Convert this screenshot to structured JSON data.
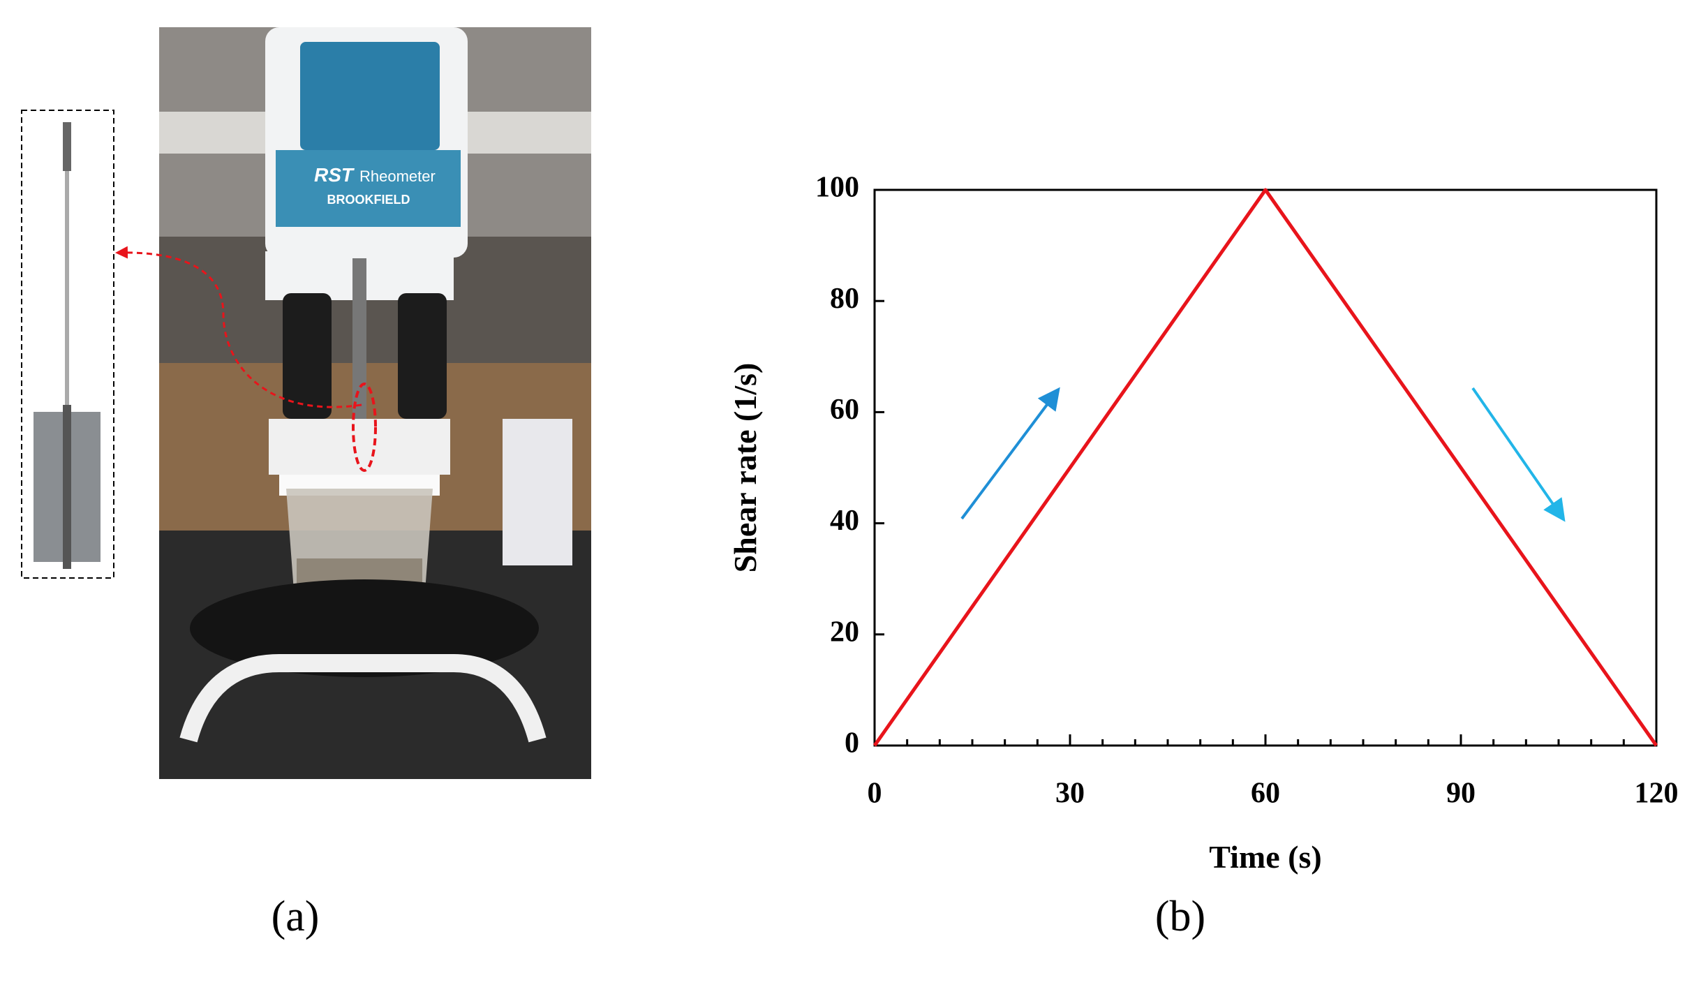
{
  "figure": {
    "panel_a_label": "(a)",
    "panel_b_label": "(b)",
    "photo": {
      "model": "RST",
      "name": "Rheometer",
      "brand": "BROOKFIELD"
    }
  },
  "chart_data": {
    "type": "line",
    "xlabel": "Time (s)",
    "ylabel": "Shear rate (1/s)",
    "x": [
      0,
      60,
      120
    ],
    "values": [
      0,
      100,
      0
    ],
    "color": "#e8141b",
    "xlim": [
      0,
      120
    ],
    "ylim": [
      0,
      100
    ],
    "xticks": [
      0,
      30,
      60,
      90,
      120
    ],
    "yticks": [
      0,
      20,
      40,
      60,
      80,
      100
    ],
    "xminorticks": [
      5,
      10,
      15,
      20,
      25,
      35,
      40,
      45,
      50,
      55,
      65,
      70,
      75,
      80,
      85,
      95,
      100,
      105,
      110,
      115
    ]
  }
}
